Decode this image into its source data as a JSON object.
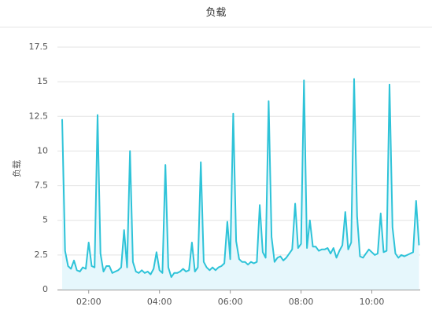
{
  "chart_data": {
    "type": "line",
    "title": "负载",
    "ylabel": "负载",
    "x": [
      75,
      80,
      85,
      90,
      95,
      100,
      105,
      110,
      115,
      120,
      125,
      130,
      135,
      140,
      145,
      150,
      155,
      160,
      165,
      170,
      175,
      180,
      185,
      190,
      195,
      200,
      205,
      210,
      215,
      220,
      225,
      230,
      235,
      240,
      245,
      250,
      255,
      260,
      265,
      270,
      275,
      280,
      285,
      290,
      295,
      300,
      305,
      310,
      315,
      320,
      325,
      330,
      335,
      340,
      345,
      350,
      355,
      360,
      365,
      370,
      375,
      380,
      385,
      390,
      395,
      400,
      405,
      410,
      415,
      420,
      425,
      430,
      435,
      440,
      445,
      450,
      455,
      460,
      465,
      470,
      475,
      480,
      485,
      490,
      495,
      500,
      505,
      510,
      515,
      520,
      525,
      530,
      535,
      540,
      545,
      550,
      555,
      560,
      565,
      570,
      575,
      580,
      585,
      590,
      595,
      600,
      605,
      610,
      615,
      620,
      625,
      630,
      635,
      640,
      645,
      650,
      655,
      660,
      665,
      670,
      675,
      680
    ],
    "series": [
      {
        "name": "负载",
        "color": "#2ec3d8",
        "fill": "#e6f7fc",
        "values": [
          12.3,
          2.8,
          1.7,
          1.5,
          2.1,
          1.4,
          1.3,
          1.6,
          1.5,
          3.4,
          1.7,
          1.6,
          12.6,
          2.6,
          1.3,
          1.7,
          1.7,
          1.2,
          1.3,
          1.4,
          1.6,
          4.3,
          1.6,
          10.0,
          2.0,
          1.3,
          1.2,
          1.4,
          1.2,
          1.3,
          1.1,
          1.5,
          2.7,
          1.4,
          1.2,
          9.0,
          1.6,
          0.9,
          1.2,
          1.2,
          1.3,
          1.5,
          1.3,
          1.4,
          3.4,
          1.3,
          1.6,
          9.2,
          2.0,
          1.6,
          1.4,
          1.6,
          1.4,
          1.6,
          1.7,
          1.9,
          4.9,
          2.2,
          12.7,
          3.5,
          2.2,
          2.0,
          2.0,
          1.8,
          2.0,
          1.9,
          2.0,
          6.1,
          2.7,
          2.3,
          13.6,
          3.8,
          2.0,
          2.3,
          2.4,
          2.1,
          2.3,
          2.6,
          2.9,
          6.2,
          3.0,
          3.3,
          15.1,
          3.0,
          5.0,
          3.1,
          3.1,
          2.8,
          2.9,
          2.9,
          3.0,
          2.6,
          3.0,
          2.3,
          2.8,
          3.2,
          5.6,
          2.9,
          3.4,
          15.2,
          5.3,
          2.4,
          2.3,
          2.6,
          2.9,
          2.7,
          2.5,
          2.6,
          5.5,
          2.7,
          2.8,
          14.8,
          4.5,
          2.6,
          2.3,
          2.5,
          2.4,
          2.5,
          2.6,
          2.7,
          6.4,
          3.2
        ]
      }
    ],
    "xlim": [
      67,
      682
    ],
    "xticks": [
      {
        "value": 120,
        "label": "02:00"
      },
      {
        "value": 240,
        "label": "04:00"
      },
      {
        "value": 360,
        "label": "06:00"
      },
      {
        "value": 480,
        "label": "08:00"
      },
      {
        "value": 600,
        "label": "10:00"
      }
    ],
    "ylim": [
      0,
      17.5
    ],
    "yticks": [
      0,
      2.5,
      5,
      7.5,
      10,
      12.5,
      15,
      17.5
    ],
    "grid": true
  }
}
